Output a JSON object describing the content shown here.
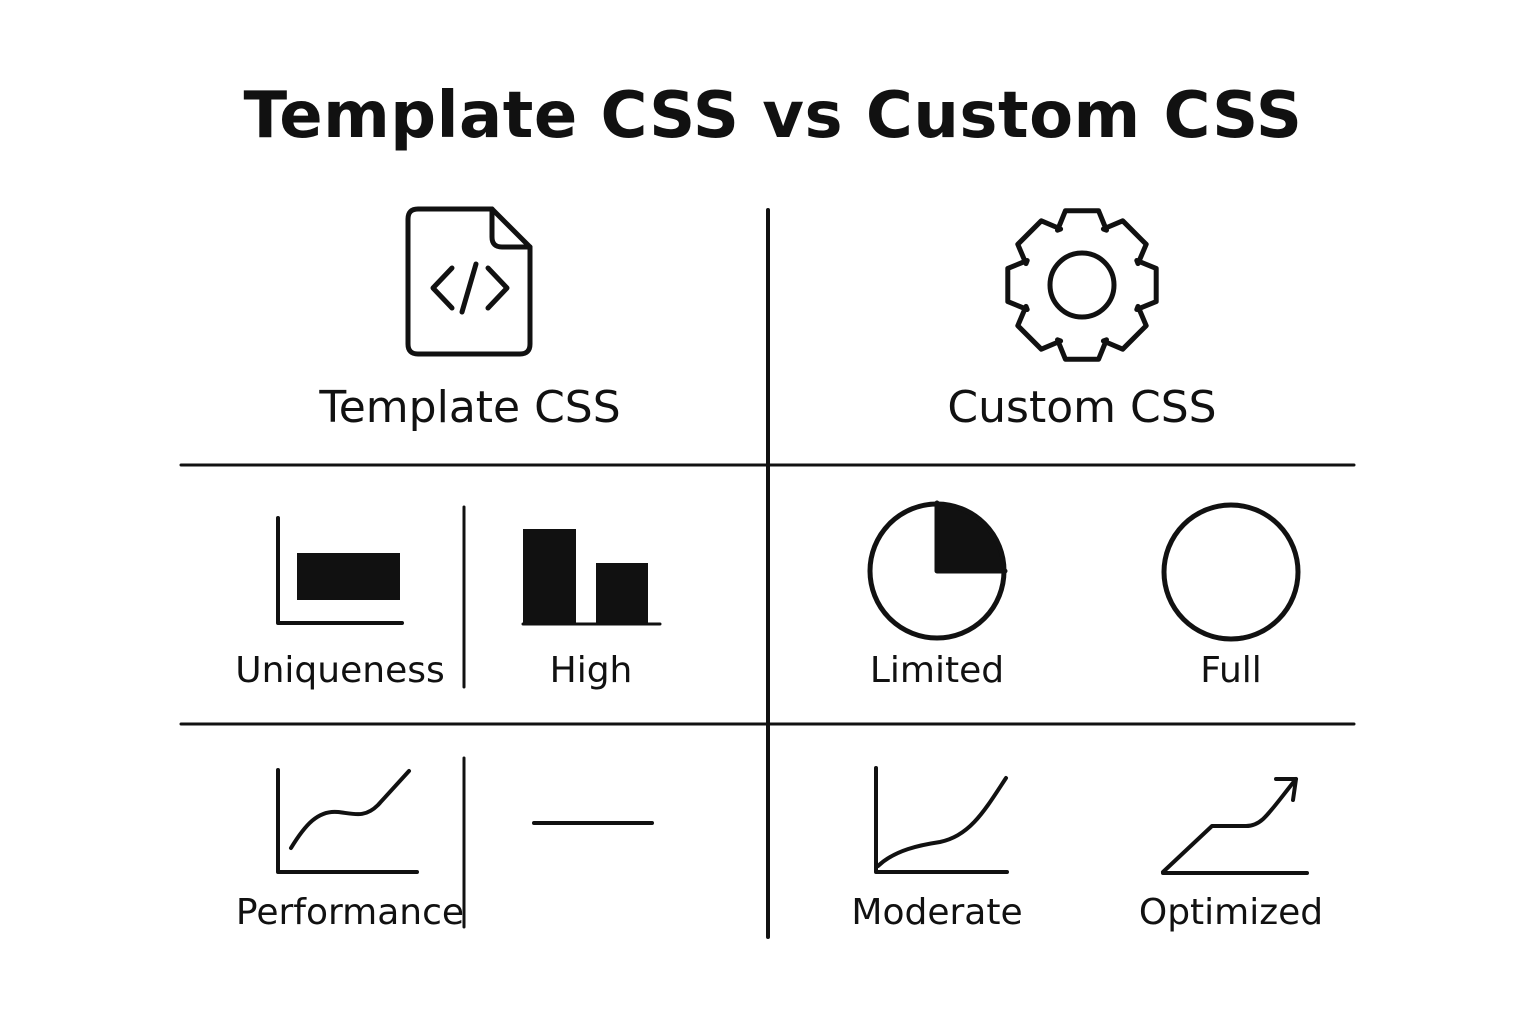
{
  "title": "Template CSS vs Custom CSS",
  "columns": {
    "template": {
      "label": "Template CSS",
      "icon": "code-file-icon"
    },
    "custom": {
      "label": "Custom CSS",
      "icon": "gear-icon"
    }
  },
  "rows": [
    {
      "criterion": "Uniqueness",
      "criterion_icon": "horizontal-bar-chart-icon",
      "template_value": "",
      "template_icon": "bar-chart-icon",
      "template_caption": "High",
      "custom_values": [
        {
          "label": "Limited",
          "icon": "quarter-pie-icon",
          "fill_fraction": 0.25
        },
        {
          "label": "Full",
          "icon": "empty-circle-icon",
          "fill_fraction": 0
        }
      ]
    },
    {
      "criterion": "Performance",
      "criterion_icon": "line-chart-icon",
      "template_icon": "dash-icon",
      "custom_values": [
        {
          "label": "Moderate",
          "icon": "rising-curve-chart-icon"
        },
        {
          "label": "Optimized",
          "icon": "trending-up-arrow-icon"
        }
      ]
    }
  ],
  "colors": {
    "ink": "#111111",
    "background": "#ffffff"
  }
}
